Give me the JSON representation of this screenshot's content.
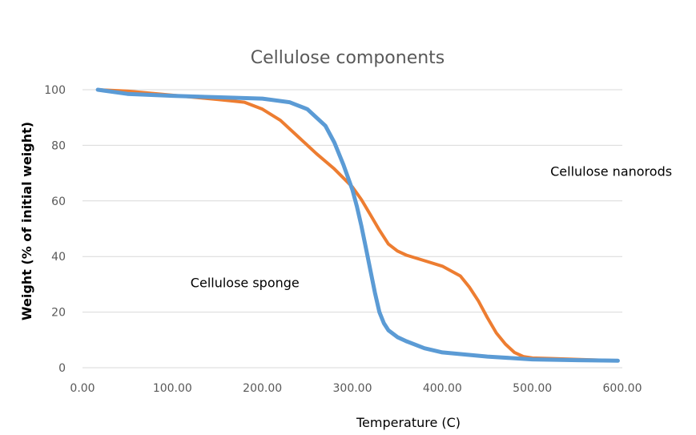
{
  "chart_data": {
    "type": "line",
    "title": "Cellulose components",
    "xlabel": "Temperature (C)",
    "ylabel": "Weight (% of initial weight)",
    "xlim": [
      0,
      600
    ],
    "ylim": [
      0,
      100
    ],
    "x_ticks": [
      "0.00",
      "100.00",
      "200.00",
      "300.00",
      "400.00",
      "500.00",
      "600.00"
    ],
    "y_ticks": [
      "0",
      "20",
      "40",
      "60",
      "80",
      "100"
    ],
    "grid": true,
    "legend": "none",
    "annotations": [
      {
        "text": "Cellulose nanorods",
        "x": 520,
        "y": 69
      },
      {
        "text": "Cellulose sponge",
        "x": 120,
        "y": 29
      }
    ],
    "series": [
      {
        "color": "#ed7d31",
        "x": [
          17,
          50,
          100,
          150,
          180,
          200,
          220,
          240,
          260,
          280,
          300,
          310,
          320,
          330,
          340,
          350,
          360,
          380,
          400,
          420,
          430,
          440,
          450,
          460,
          470,
          480,
          490,
          500,
          520,
          550,
          595
        ],
        "y": [
          100,
          99.5,
          98,
          96.5,
          95.5,
          93,
          89,
          83,
          77,
          71.5,
          65,
          60.5,
          55,
          49.5,
          44.5,
          42,
          40.5,
          38.5,
          36.5,
          33,
          29,
          24,
          18,
          12.5,
          8.5,
          5.5,
          4,
          3.5,
          3.3,
          3,
          2.5
        ]
      },
      {
        "color": "#5b9bd5",
        "x": [
          17,
          50,
          100,
          150,
          200,
          230,
          250,
          270,
          280,
          290,
          300,
          305,
          310,
          315,
          320,
          325,
          330,
          335,
          340,
          350,
          360,
          380,
          400,
          450,
          500,
          550,
          595
        ],
        "y": [
          100,
          98.5,
          97.8,
          97.3,
          96.8,
          95.5,
          93,
          87,
          81,
          73,
          64,
          58,
          51,
          43,
          35,
          27,
          20,
          16,
          13.5,
          11,
          9.5,
          7,
          5.5,
          4,
          3,
          2.7,
          2.5
        ]
      }
    ]
  }
}
